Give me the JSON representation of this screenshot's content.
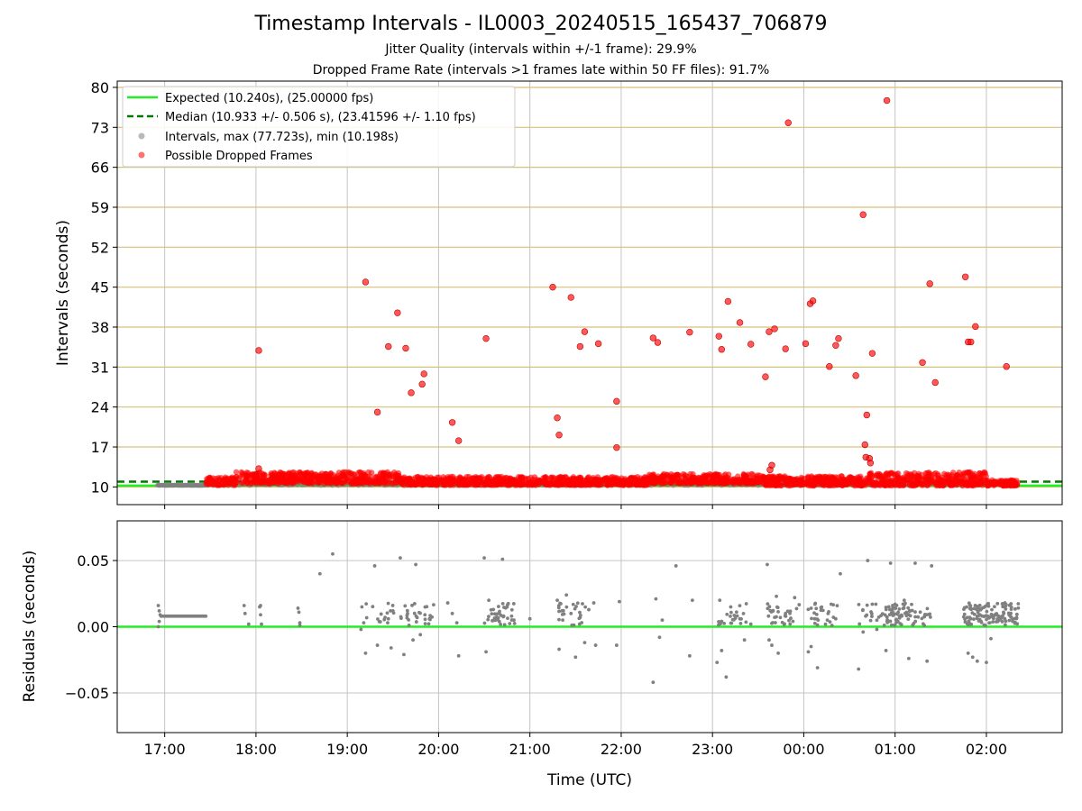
{
  "chart_data": [
    {
      "type": "scatter",
      "title": "Timestamp Intervals - IL0003_20240515_165437_706879",
      "subtitle_1": "Jitter Quality (intervals within +/-1 frame): 29.9%",
      "subtitle_2": "Dropped Frame Rate (intervals >1 frames late within 50 FF files): 91.7%",
      "xlabel": "",
      "ylabel": "Intervals (seconds)",
      "xlim": [
        16.48,
        26.83
      ],
      "ylim": [
        6.9,
        81.1
      ],
      "yticks": [
        10,
        17,
        24,
        31,
        38,
        45,
        52,
        59,
        66,
        73,
        80
      ],
      "ytick_labels": [
        "10",
        "17",
        "24",
        "31",
        "38",
        "45",
        "52",
        "59",
        "66",
        "73",
        "80"
      ],
      "grid": true,
      "legend_position": "top-left",
      "colors": {
        "expected": "#22ee22",
        "median": "#007a00",
        "intervals": "#808080",
        "dropped": "#ff0000",
        "hgrid": "#d6c17a",
        "vgrid": "#c4c4c4"
      },
      "series": [
        {
          "name": "Expected (10.240s), (25.00000 fps)",
          "kind": "hline",
          "y": 10.24
        },
        {
          "name": "Median (10.933 +/- 0.506 s), (23.41596 +/- 1.10 fps)",
          "kind": "hline-dashed",
          "y": 10.933
        },
        {
          "name": "Intervals, max (77.723s), min (10.198s)",
          "kind": "band",
          "x_ranges": [
            [
              16.92,
              17.45
            ],
            [
              17.45,
              21.6
            ],
            [
              21.6,
              26.35
            ]
          ]
        },
        {
          "name": "Possible Dropped Frames",
          "kind": "scatter",
          "band_x_ranges": [
            [
              17.45,
              17.78
            ],
            [
              17.78,
              19.6
            ],
            [
              19.6,
              22.3
            ],
            [
              22.3,
              23.55
            ],
            [
              23.55,
              24.6
            ],
            [
              24.6,
              25.3
            ],
            [
              25.3,
              26.0
            ],
            [
              26.0,
              26.35
            ]
          ],
          "band_y_ranges": [
            [
              10.3,
              11.7
            ],
            [
              10.6,
              12.6
            ],
            [
              10.3,
              11.8
            ],
            [
              10.6,
              12.3
            ],
            [
              10.2,
              11.9
            ],
            [
              10.2,
              12.5
            ],
            [
              10.2,
              12.6
            ],
            [
              10.2,
              11.2
            ]
          ],
          "x": [
            18.03,
            18.03,
            19.2,
            19.33,
            19.45,
            19.55,
            19.64,
            19.7,
            19.82,
            19.84,
            20.15,
            20.22,
            20.52,
            21.25,
            21.3,
            21.32,
            21.45,
            21.55,
            21.6,
            21.75,
            21.95,
            21.95,
            22.35,
            22.4,
            22.75,
            23.07,
            23.1,
            23.17,
            23.3,
            23.42,
            23.58,
            23.62,
            23.63,
            23.65,
            23.68,
            23.8,
            23.83,
            24.02,
            24.07,
            24.1,
            24.28,
            24.35,
            24.38,
            24.57,
            24.65,
            24.67,
            24.68,
            24.69,
            24.72,
            24.73,
            24.75,
            24.91,
            25.3,
            25.38,
            25.44,
            25.77,
            25.8,
            25.83,
            25.88,
            26.22
          ],
          "y": [
            13.2,
            33.9,
            45.9,
            23.1,
            34.6,
            40.5,
            34.3,
            26.5,
            28.0,
            29.8,
            21.3,
            18.1,
            36.0,
            45.0,
            22.1,
            19.1,
            43.2,
            34.6,
            37.2,
            35.1,
            25.0,
            16.9,
            36.1,
            35.3,
            37.1,
            36.4,
            34.1,
            42.5,
            38.8,
            35.0,
            29.3,
            37.2,
            13.0,
            13.8,
            37.7,
            34.2,
            73.8,
            35.1,
            42.1,
            42.6,
            31.1,
            34.8,
            36.0,
            29.5,
            57.7,
            17.4,
            15.2,
            22.6,
            15.0,
            14.2,
            33.4,
            77.7,
            31.8,
            45.6,
            28.3,
            46.8,
            35.4,
            35.4,
            38.1,
            31.1
          ]
        }
      ]
    },
    {
      "type": "scatter",
      "xlabel": "Time (UTC)",
      "ylabel": "Residuals (seconds)",
      "xlim": [
        16.48,
        26.83
      ],
      "ylim": [
        -0.08,
        0.08
      ],
      "yticks": [
        -0.05,
        0.0,
        0.05
      ],
      "ytick_labels": [
        "−0.05",
        "0.00",
        "0.05"
      ],
      "xticks": [
        17,
        18,
        19,
        20,
        21,
        22,
        23,
        24,
        25,
        26
      ],
      "xtick_labels": [
        "17:00",
        "18:00",
        "19:00",
        "20:00",
        "21:00",
        "22:00",
        "23:00",
        "00:00",
        "01:00",
        "02:00"
      ],
      "grid": true,
      "series": [
        {
          "kind": "hline",
          "y": 0.0,
          "color": "#22ee22"
        },
        {
          "kind": "line-dots",
          "x_range": [
            16.96,
            17.45
          ],
          "y": 0.008
        },
        {
          "kind": "scatter",
          "x": [
            16.93,
            16.94,
            16.95,
            16.93,
            16.94,
            17.87,
            17.88,
            17.92,
            18.05,
            18.05,
            18.06,
            18.04,
            18.46,
            18.47,
            18.48,
            18.48,
            18.7,
            18.84,
            19.15,
            19.16,
            19.18,
            19.2,
            19.3,
            19.33,
            19.45,
            19.48,
            19.5,
            19.58,
            19.62,
            19.66,
            19.72,
            19.75,
            19.8,
            19.85,
            19.9,
            20.1,
            20.15,
            20.2,
            20.22,
            20.5,
            20.52,
            20.55,
            20.6,
            20.65,
            20.7,
            20.75,
            20.8,
            21.0,
            21.3,
            21.32,
            21.35,
            21.4,
            21.45,
            21.5,
            21.55,
            21.6,
            21.7,
            21.72,
            21.95,
            21.98,
            22.35,
            22.38,
            22.42,
            22.45,
            22.6,
            22.75,
            22.78,
            23.05,
            23.08,
            23.1,
            23.15,
            23.2,
            23.3,
            23.35,
            23.42,
            23.6,
            23.62,
            23.65,
            23.7,
            23.72,
            23.8,
            23.85,
            23.9,
            24.05,
            24.08,
            24.12,
            24.15,
            24.3,
            24.35,
            24.4,
            24.6,
            24.65,
            24.7,
            24.75,
            24.8,
            24.9,
            24.95,
            25.0,
            25.1,
            25.15,
            25.22,
            25.32,
            25.35,
            25.4,
            25.8,
            25.85,
            25.9,
            26.0,
            26.05,
            26.2
          ],
          "y": [
            0.016,
            0.012,
            0.009,
            0.0,
            0.004,
            0.016,
            0.01,
            0.002,
            0.016,
            0.009,
            0.002,
            0.015,
            0.014,
            0.011,
            0.003,
            0.001,
            0.04,
            0.055,
            -0.002,
            0.015,
            0.003,
            -0.02,
            0.046,
            -0.014,
            0.006,
            -0.016,
            0.012,
            0.052,
            -0.021,
            0.01,
            -0.01,
            0.047,
            -0.006,
            0.009,
            0.006,
            0.018,
            0.01,
            0.003,
            -0.022,
            0.052,
            -0.019,
            0.02,
            0.013,
            0.006,
            0.051,
            0.015,
            0.008,
            0.006,
            0.02,
            -0.017,
            0.012,
            0.024,
            0.01,
            -0.023,
            0.007,
            -0.012,
            0.018,
            -0.014,
            -0.014,
            0.019,
            -0.042,
            0.021,
            -0.008,
            0.005,
            0.046,
            -0.022,
            0.02,
            -0.027,
            0.02,
            -0.018,
            -0.038,
            0.015,
            0.006,
            -0.01,
            0.002,
            0.047,
            -0.01,
            -0.014,
            0.023,
            -0.02,
            0.01,
            0.002,
            0.022,
            -0.019,
            -0.015,
            0.006,
            -0.031,
            0.017,
            0.006,
            0.04,
            -0.032,
            -0.004,
            0.05,
            0.017,
            -0.002,
            -0.018,
            0.048,
            0.017,
            0.02,
            -0.024,
            0.048,
            0.001,
            -0.026,
            0.046,
            -0.02,
            -0.023,
            -0.026,
            -0.027,
            -0.009,
            0.006
          ]
        }
      ]
    }
  ]
}
